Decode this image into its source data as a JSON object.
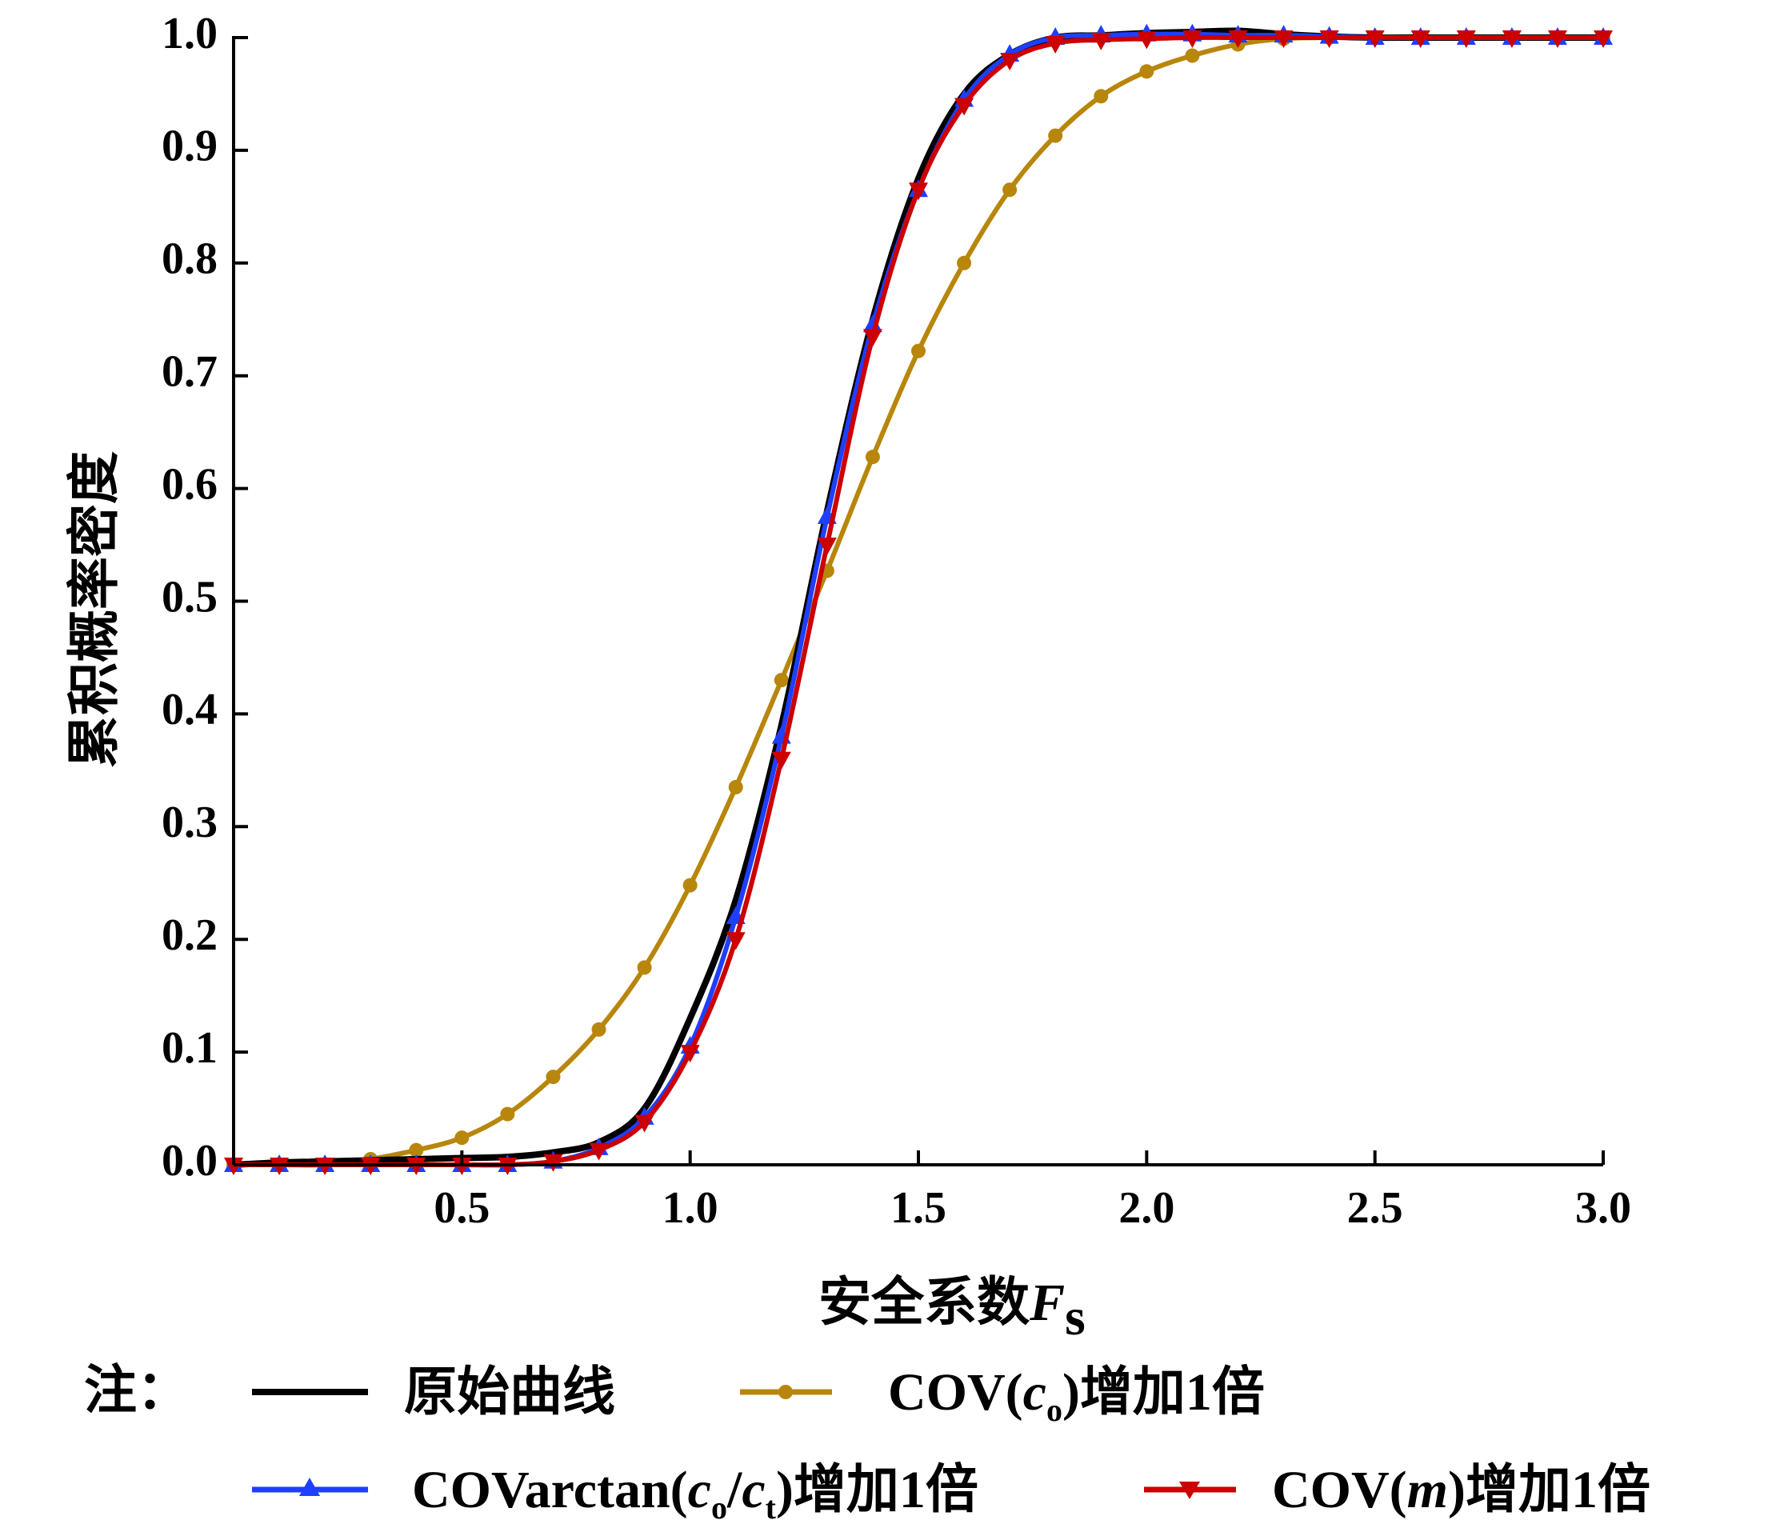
{
  "chart_data": {
    "type": "line",
    "xlabel_main": "安全系数",
    "xlabel_var": "F",
    "xlabel_sub": "s",
    "ylabel": "累积概率密度",
    "xlim": [
      0,
      3.0
    ],
    "ylim": [
      0,
      1.0
    ],
    "xticks": [
      "0.5",
      "1.0",
      "1.5",
      "2.0",
      "2.5",
      "3.0"
    ],
    "yticks": [
      "0.0",
      "0.1",
      "0.2",
      "0.3",
      "0.4",
      "0.5",
      "0.6",
      "0.7",
      "0.8",
      "0.9",
      "1.0"
    ],
    "grid": false,
    "legend_placement": "bottom",
    "legend_note": "注：",
    "series": [
      {
        "name": "原始曲线",
        "color": "#000000",
        "marker": "none",
        "x": [
          0.0,
          0.1,
          0.2,
          0.3,
          0.4,
          0.5,
          0.6,
          0.7,
          0.8,
          0.9,
          1.0,
          1.1,
          1.2,
          1.3,
          1.4,
          1.5,
          1.6,
          1.7,
          1.8,
          1.9,
          2.0,
          2.1,
          2.2,
          2.3,
          2.4,
          2.5,
          2.6,
          2.7,
          2.8,
          2.9,
          3.0
        ],
        "y": [
          0.0,
          0.002,
          0.003,
          0.004,
          0.005,
          0.006,
          0.007,
          0.011,
          0.02,
          0.05,
          0.13,
          0.235,
          0.39,
          0.58,
          0.75,
          0.875,
          0.95,
          0.985,
          1.0,
          1.002,
          1.004,
          1.005,
          1.006,
          1.003,
          1.001,
          1.0,
          1.0,
          1.0,
          1.0,
          1.0,
          1.0
        ]
      },
      {
        "name_prefix": "COV(",
        "name_var": "c",
        "name_sub": "o",
        "name_suffix": ")增加1倍",
        "color": "#b8860b",
        "marker": "circle",
        "x": [
          0.0,
          0.1,
          0.2,
          0.3,
          0.4,
          0.5,
          0.6,
          0.7,
          0.8,
          0.9,
          1.0,
          1.1,
          1.2,
          1.3,
          1.4,
          1.5,
          1.6,
          1.7,
          1.8,
          1.9,
          2.0,
          2.1,
          2.2,
          2.3,
          2.4,
          2.5,
          2.6,
          2.7,
          2.8,
          2.9,
          3.0
        ],
        "y": [
          0.0,
          0.0,
          0.0,
          0.005,
          0.013,
          0.024,
          0.045,
          0.078,
          0.12,
          0.175,
          0.248,
          0.335,
          0.43,
          0.527,
          0.628,
          0.722,
          0.8,
          0.865,
          0.913,
          0.948,
          0.97,
          0.984,
          0.994,
          0.999,
          1.0,
          1.0,
          1.0,
          1.0,
          1.0,
          1.0,
          1.0
        ]
      },
      {
        "name_prefix": "COVarctan(",
        "name_var": "c",
        "name_sub": "o",
        "name_mid": "/",
        "name_var2": "c",
        "name_sub2": "t",
        "name_suffix": ")增加1倍",
        "color": "#1f3fff",
        "marker": "triangle-up",
        "x": [
          0.0,
          0.1,
          0.2,
          0.3,
          0.4,
          0.5,
          0.6,
          0.7,
          0.8,
          0.9,
          1.0,
          1.1,
          1.2,
          1.3,
          1.4,
          1.5,
          1.6,
          1.7,
          1.8,
          1.9,
          2.0,
          2.1,
          2.2,
          2.3,
          2.4,
          2.5,
          2.6,
          2.7,
          2.8,
          2.9,
          3.0
        ],
        "y": [
          0.0,
          0.0,
          0.0,
          0.0,
          0.0,
          0.0,
          0.0,
          0.003,
          0.015,
          0.042,
          0.105,
          0.22,
          0.38,
          0.575,
          0.745,
          0.865,
          0.945,
          0.985,
          1.0,
          1.002,
          1.003,
          1.003,
          1.002,
          1.002,
          1.001,
          1.0,
          1.0,
          1.0,
          1.0,
          1.0,
          1.0
        ]
      },
      {
        "name_prefix": "COV(",
        "name_var": "m",
        "name_suffix": ")增加1倍",
        "color": "#cc0000",
        "marker": "triangle-down",
        "x": [
          0.0,
          0.1,
          0.2,
          0.3,
          0.4,
          0.5,
          0.6,
          0.7,
          0.8,
          0.9,
          1.0,
          1.1,
          1.2,
          1.3,
          1.4,
          1.5,
          1.6,
          1.7,
          1.8,
          1.9,
          2.0,
          2.1,
          2.2,
          2.3,
          2.4,
          2.5,
          2.6,
          2.7,
          2.8,
          2.9,
          3.0
        ],
        "y": [
          0.0,
          0.0,
          0.0,
          0.0,
          0.0,
          0.0,
          0.0,
          0.003,
          0.013,
          0.038,
          0.1,
          0.2,
          0.36,
          0.55,
          0.735,
          0.865,
          0.94,
          0.98,
          0.995,
          0.998,
          0.999,
          1.0,
          1.0,
          1.0,
          1.0,
          1.0,
          1.0,
          1.0,
          1.0,
          1.0,
          1.0
        ]
      }
    ]
  }
}
